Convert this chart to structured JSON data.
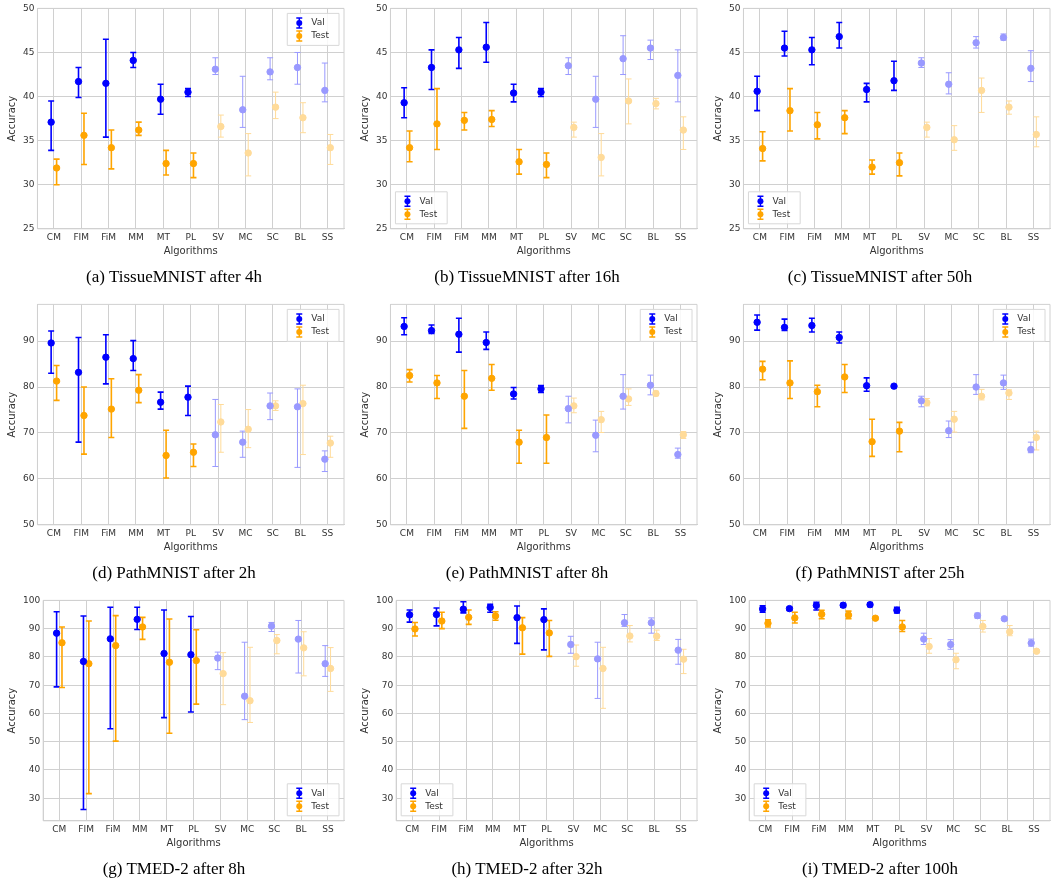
{
  "chart_data": [
    {
      "type": "scatter",
      "title": "(a) TissueMNIST after 4h",
      "xlabel": "Algorithms",
      "ylabel": "Accuracy",
      "categories": [
        "CM",
        "FIM",
        "FiM",
        "MM",
        "MT",
        "PL",
        "SV",
        "MC",
        "SC",
        "BL",
        "SS"
      ],
      "ylim": [
        25,
        50
      ],
      "yticks": [
        25,
        30,
        35,
        40,
        45,
        50
      ],
      "grid": true,
      "legend": "top right",
      "marker": "circle",
      "series": [
        {
          "name": "Val",
          "color": "#0000ff",
          "colors": [
            "#0000ff",
            "#0000ff",
            "#0000ff",
            "#0000ff",
            "#0000ff",
            "#0000ff",
            "#9999ff",
            "#9999ff",
            "#9999ff",
            "#9999ff",
            "#9999ff"
          ],
          "values": [
            37.1,
            41.7,
            41.5,
            44.1,
            39.7,
            40.5,
            43.1,
            38.5,
            42.8,
            43.3,
            40.7
          ],
          "errors": [
            [
              33.9,
              39.5
            ],
            [
              39.9,
              43.3
            ],
            [
              35.4,
              46.5
            ],
            [
              43.3,
              45.0
            ],
            [
              38.0,
              41.4
            ],
            [
              40.0,
              40.9
            ],
            [
              42.5,
              44.4
            ],
            [
              36.5,
              42.3
            ],
            [
              41.9,
              44.4
            ],
            [
              41.4,
              45.0
            ],
            [
              39.4,
              43.8
            ]
          ]
        },
        {
          "name": "Test",
          "color": "#ffa500",
          "colors": [
            "#ffa500",
            "#ffa500",
            "#ffa500",
            "#ffa500",
            "#ffa500",
            "#ffa500",
            "#ffdb99",
            "#ffdb99",
            "#ffdb99",
            "#ffdb99",
            "#ffdb99"
          ],
          "values": [
            31.9,
            35.6,
            34.2,
            36.2,
            32.4,
            32.4,
            36.6,
            33.6,
            38.8,
            37.6,
            34.2
          ],
          "errors": [
            [
              30.0,
              32.9
            ],
            [
              32.3,
              38.1
            ],
            [
              31.8,
              36.2
            ],
            [
              35.6,
              37.1
            ],
            [
              31.1,
              33.9
            ],
            [
              30.8,
              33.6
            ],
            [
              35.4,
              37.9
            ],
            [
              31.0,
              35.8
            ],
            [
              37.5,
              40.5
            ],
            [
              35.9,
              39.3
            ],
            [
              32.3,
              35.7
            ]
          ]
        }
      ]
    },
    {
      "type": "scatter",
      "title": "(b) TissueMNIST after 16h",
      "xlabel": "Algorithms",
      "ylabel": "Accuracy",
      "categories": [
        "CM",
        "FIM",
        "FiM",
        "MM",
        "MT",
        "PL",
        "SV",
        "MC",
        "SC",
        "BL",
        "SS"
      ],
      "ylim": [
        25,
        50
      ],
      "yticks": [
        25,
        30,
        35,
        40,
        45,
        50
      ],
      "grid": true,
      "legend": "bottom left",
      "marker": "circle",
      "series": [
        {
          "name": "Val",
          "color": "#0000ff",
          "colors": [
            "#0000ff",
            "#0000ff",
            "#0000ff",
            "#0000ff",
            "#0000ff",
            "#0000ff",
            "#9999ff",
            "#9999ff",
            "#9999ff",
            "#9999ff",
            "#9999ff"
          ],
          "values": [
            39.3,
            43.3,
            45.3,
            45.6,
            40.4,
            40.5,
            43.5,
            39.7,
            44.3,
            45.5,
            42.4
          ],
          "errors": [
            [
              37.6,
              41.0
            ],
            [
              40.8,
              45.3
            ],
            [
              43.2,
              46.7
            ],
            [
              43.9,
              48.4
            ],
            [
              39.4,
              41.4
            ],
            [
              40.0,
              40.9
            ],
            [
              42.5,
              44.4
            ],
            [
              36.5,
              42.3
            ],
            [
              42.5,
              46.9
            ],
            [
              44.2,
              46.4
            ],
            [
              39.4,
              45.3
            ]
          ]
        },
        {
          "name": "Test",
          "color": "#ffa500",
          "colors": [
            "#ffa500",
            "#ffa500",
            "#ffa500",
            "#ffa500",
            "#ffa500",
            "#ffa500",
            "#ffdb99",
            "#ffdb99",
            "#ffdb99",
            "#ffdb99",
            "#ffdb99"
          ],
          "values": [
            34.2,
            36.9,
            37.3,
            37.4,
            32.6,
            32.3,
            36.5,
            33.1,
            39.5,
            39.2,
            36.2
          ],
          "errors": [
            [
              32.6,
              36.1
            ],
            [
              34.0,
              40.9
            ],
            [
              36.2,
              38.2
            ],
            [
              36.6,
              38.4
            ],
            [
              31.2,
              34.0
            ],
            [
              30.8,
              33.6
            ],
            [
              35.4,
              37.1
            ],
            [
              31.0,
              35.8
            ],
            [
              36.9,
              42.0
            ],
            [
              38.6,
              39.8
            ],
            [
              34.0,
              37.7
            ]
          ]
        }
      ]
    },
    {
      "type": "scatter",
      "title": "(c) TissueMNIST after 50h",
      "xlabel": "Algorithms",
      "ylabel": "Accuracy",
      "categories": [
        "CM",
        "FIM",
        "FiM",
        "MM",
        "MT",
        "PL",
        "SV",
        "MC",
        "SC",
        "BL",
        "SS"
      ],
      "ylim": [
        25,
        50
      ],
      "yticks": [
        25,
        30,
        35,
        40,
        45,
        50
      ],
      "grid": true,
      "legend": "bottom left",
      "marker": "circle",
      "series": [
        {
          "name": "Val",
          "color": "#0000ff",
          "colors": [
            "#0000ff",
            "#0000ff",
            "#0000ff",
            "#0000ff",
            "#0000ff",
            "#0000ff",
            "#9999ff",
            "#9999ff",
            "#9999ff",
            "#9999ff",
            "#9999ff"
          ],
          "values": [
            40.6,
            45.5,
            45.3,
            46.8,
            40.8,
            41.8,
            43.8,
            41.4,
            46.1,
            46.7,
            43.2
          ],
          "errors": [
            [
              38.4,
              42.3
            ],
            [
              44.6,
              47.4
            ],
            [
              43.6,
              46.7
            ],
            [
              45.5,
              48.4
            ],
            [
              39.4,
              41.5
            ],
            [
              40.7,
              44.0
            ],
            [
              43.3,
              44.4
            ],
            [
              40.3,
              42.7
            ],
            [
              45.5,
              46.8
            ],
            [
              46.4,
              47.1
            ],
            [
              41.7,
              45.2
            ]
          ]
        },
        {
          "name": "Test",
          "color": "#ffa500",
          "colors": [
            "#ffa500",
            "#ffa500",
            "#ffa500",
            "#ffa500",
            "#ffa500",
            "#ffa500",
            "#ffdb99",
            "#ffdb99",
            "#ffdb99",
            "#ffdb99",
            "#ffdb99"
          ],
          "values": [
            34.1,
            38.4,
            36.8,
            37.6,
            32.0,
            32.5,
            36.5,
            35.1,
            40.7,
            38.8,
            35.7
          ],
          "errors": [
            [
              32.7,
              36.0
            ],
            [
              36.1,
              40.9
            ],
            [
              35.2,
              38.2
            ],
            [
              35.8,
              38.4
            ],
            [
              31.2,
              32.8
            ],
            [
              31.0,
              33.6
            ],
            [
              35.4,
              37.1
            ],
            [
              33.9,
              36.7
            ],
            [
              38.2,
              42.1
            ],
            [
              38.0,
              39.5
            ],
            [
              34.3,
              37.7
            ]
          ]
        }
      ]
    },
    {
      "type": "scatter",
      "title": "(d) PathMNIST after 2h",
      "xlabel": "Algorithms",
      "ylabel": "Accuracy",
      "categories": [
        "CM",
        "FIM",
        "FiM",
        "MM",
        "MT",
        "PL",
        "SV",
        "MC",
        "SC",
        "BL",
        "SS"
      ],
      "ylim": [
        50,
        98
      ],
      "yticks": [
        50,
        60,
        70,
        80,
        90
      ],
      "grid": true,
      "legend": "top right",
      "marker": "circle",
      "series": [
        {
          "name": "Val",
          "color": "#0000ff",
          "colors": [
            "#0000ff",
            "#0000ff",
            "#0000ff",
            "#0000ff",
            "#0000ff",
            "#0000ff",
            "#9999ff",
            "#9999ff",
            "#9999ff",
            "#9999ff",
            "#9999ff"
          ],
          "values": [
            89.6,
            83.2,
            86.5,
            86.2,
            76.7,
            77.8,
            69.6,
            68.0,
            75.9,
            75.7,
            64.3
          ],
          "errors": [
            [
              83.0,
              92.2
            ],
            [
              68.0,
              90.8
            ],
            [
              80.7,
              91.4
            ],
            [
              83.6,
              90.1
            ],
            [
              75.2,
              78.9
            ],
            [
              73.8,
              80.2
            ],
            [
              62.7,
              77.3
            ],
            [
              64.7,
              70.4
            ],
            [
              72.9,
              78.7
            ],
            [
              62.5,
              79.6
            ],
            [
              61.6,
              66.1
            ]
          ]
        },
        {
          "name": "Test",
          "color": "#ffa500",
          "colors": [
            "#ffa500",
            "#ffa500",
            "#ffa500",
            "#ffa500",
            "#ffa500",
            "#ffa500",
            "#ffdb99",
            "#ffdb99",
            "#ffdb99",
            "#ffdb99",
            "#ffdb99"
          ],
          "values": [
            81.3,
            73.8,
            75.2,
            79.3,
            65.1,
            65.8,
            72.4,
            70.8,
            75.9,
            76.4,
            67.8
          ],
          "errors": [
            [
              77.1,
              84.7
            ],
            [
              65.4,
              80.0
            ],
            [
              69.0,
              81.8
            ],
            [
              76.6,
              82.7
            ],
            [
              60.2,
              70.6
            ],
            [
              62.7,
              67.6
            ],
            [
              65.8,
              76.2
            ],
            [
              66.8,
              75.1
            ],
            [
              74.9,
              77.0
            ],
            [
              65.3,
              80.4
            ],
            [
              64.7,
              69.3
            ]
          ]
        }
      ]
    },
    {
      "type": "scatter",
      "title": "(e) PathMNIST after 8h",
      "xlabel": "Algorithms",
      "ylabel": "Accuracy",
      "categories": [
        "CM",
        "FIM",
        "FiM",
        "MM",
        "MT",
        "PL",
        "SV",
        "MC",
        "SC",
        "BL",
        "SS"
      ],
      "ylim": [
        50,
        98
      ],
      "yticks": [
        50,
        60,
        70,
        80,
        90
      ],
      "grid": true,
      "legend": "top right",
      "marker": "circle",
      "series": [
        {
          "name": "Val",
          "color": "#0000ff",
          "colors": [
            "#0000ff",
            "#0000ff",
            "#0000ff",
            "#0000ff",
            "#0000ff",
            "#0000ff",
            "#9999ff",
            "#9999ff",
            "#9999ff",
            "#9999ff",
            "#9999ff"
          ],
          "values": [
            93.2,
            92.3,
            91.5,
            89.7,
            78.5,
            79.6,
            75.3,
            69.5,
            78.0,
            80.4,
            65.3
          ],
          "errors": [
            [
              91.4,
              95.1
            ],
            [
              91.7,
              93.5
            ],
            [
              87.6,
              95.0
            ],
            [
              88.2,
              92.0
            ],
            [
              77.4,
              79.9
            ],
            [
              78.8,
              80.3
            ],
            [
              72.2,
              78.0
            ],
            [
              65.9,
              72.8
            ],
            [
              75.2,
              82.7
            ],
            [
              78.3,
              82.6
            ],
            [
              64.5,
              66.7
            ]
          ]
        },
        {
          "name": "Test",
          "color": "#ffa500",
          "colors": [
            "#ffa500",
            "#ffa500",
            "#ffa500",
            "#ffa500",
            "#ffa500",
            "#ffa500",
            "#ffdb99",
            "#ffdb99",
            "#ffdb99",
            "#ffdb99",
            "#ffdb99"
          ],
          "values": [
            82.5,
            80.9,
            78.0,
            81.9,
            68.0,
            69.0,
            75.9,
            72.9,
            77.4,
            78.6,
            69.6
          ],
          "errors": [
            [
              81.1,
              83.8
            ],
            [
              77.5,
              82.5
            ],
            [
              71.0,
              83.6
            ],
            [
              79.3,
              84.9
            ],
            [
              63.4,
              70.6
            ],
            [
              63.4,
              73.9
            ],
            [
              74.4,
              77.6
            ],
            [
              70.1,
              74.7
            ],
            [
              76.0,
              79.6
            ],
            [
              78.1,
              79.1
            ],
            [
              68.8,
              70.3
            ]
          ]
        }
      ]
    },
    {
      "type": "scatter",
      "title": "(f) PathMNIST after 25h",
      "xlabel": "Algorithms",
      "ylabel": "Accuracy",
      "categories": [
        "CM",
        "FIM",
        "FiM",
        "MM",
        "MT",
        "PL",
        "SV",
        "MC",
        "SC",
        "BL",
        "SS"
      ],
      "ylim": [
        50,
        98
      ],
      "yticks": [
        50,
        60,
        70,
        80,
        90
      ],
      "grid": true,
      "legend": "top right",
      "marker": "circle",
      "series": [
        {
          "name": "Val",
          "color": "#0000ff",
          "colors": [
            "#0000ff",
            "#0000ff",
            "#0000ff",
            "#0000ff",
            "#0000ff",
            "#0000ff",
            "#9999ff",
            "#9999ff",
            "#9999ff",
            "#9999ff",
            "#9999ff"
          ],
          "values": [
            94.1,
            93.0,
            93.4,
            90.8,
            80.3,
            80.2,
            77.0,
            70.5,
            80.0,
            80.9,
            66.4
          ],
          "errors": [
            [
              92.4,
              95.7
            ],
            [
              92.3,
              94.8
            ],
            [
              92.0,
              95.0
            ],
            [
              89.6,
              92.0
            ],
            [
              79.1,
              82.0
            ],
            [
              79.9,
              80.5
            ],
            [
              75.7,
              78.0
            ],
            [
              69.0,
              72.6
            ],
            [
              78.4,
              82.7
            ],
            [
              79.5,
              82.6
            ],
            [
              65.7,
              68.0
            ]
          ]
        },
        {
          "name": "Test",
          "color": "#ffa500",
          "colors": [
            "#ffa500",
            "#ffa500",
            "#ffa500",
            "#ffa500",
            "#ffa500",
            "#ffa500",
            "#ffdb99",
            "#ffdb99",
            "#ffdb99",
            "#ffdb99",
            "#ffdb99"
          ],
          "values": [
            83.9,
            80.9,
            79.0,
            82.2,
            68.1,
            70.4,
            76.6,
            73.0,
            78.0,
            78.7,
            69.0
          ],
          "errors": [
            [
              81.6,
              85.6
            ],
            [
              77.5,
              85.7
            ],
            [
              75.7,
              80.4
            ],
            [
              78.8,
              84.9
            ],
            [
              64.9,
              73.0
            ],
            [
              65.9,
              72.3
            ],
            [
              75.9,
              77.5
            ],
            [
              70.2,
              74.7
            ],
            [
              77.2,
              79.5
            ],
            [
              77.3,
              79.4
            ],
            [
              66.3,
              70.4
            ]
          ]
        }
      ]
    },
    {
      "type": "scatter",
      "title": "(g) TMED-2 after 8h",
      "xlabel": "Algorithms",
      "ylabel": "Accuracy",
      "categories": [
        "CM",
        "FIM",
        "FiM",
        "MM",
        "MT",
        "PL",
        "SV",
        "MC",
        "SC",
        "BL",
        "SS"
      ],
      "ylim": [
        22,
        100
      ],
      "yticks": [
        30,
        40,
        50,
        60,
        70,
        80,
        90,
        100
      ],
      "grid": true,
      "legend": "bottom right",
      "marker": "circle",
      "series": [
        {
          "name": "Val",
          "color": "#0000ff",
          "colors": [
            "#0000ff",
            "#0000ff",
            "#0000ff",
            "#0000ff",
            "#0000ff",
            "#0000ff",
            "#9999ff",
            "#9999ff",
            "#9999ff",
            "#9999ff",
            "#9999ff"
          ],
          "values": [
            88.4,
            78.4,
            86.4,
            93.3,
            81.2,
            80.8,
            79.6,
            66.1,
            90.9,
            86.3,
            77.6
          ],
          "errors": [
            [
              69.4,
              96.0
            ],
            [
              26.0,
              94.5
            ],
            [
              54.6,
              97.6
            ],
            [
              89.7,
              97.6
            ],
            [
              58.5,
              96.6
            ],
            [
              60.5,
              94.3
            ],
            [
              75.5,
              81.7
            ],
            [
              57.8,
              85.2
            ],
            [
              89.0,
              92.2
            ],
            [
              74.3,
              92.9
            ],
            [
              73.1,
              84.0
            ]
          ]
        },
        {
          "name": "Test",
          "color": "#ffa500",
          "colors": [
            "#ffa500",
            "#ffa500",
            "#ffa500",
            "#ffa500",
            "#ffa500",
            "#ffa500",
            "#ffdb99",
            "#ffdb99",
            "#ffdb99",
            "#ffdb99",
            "#ffdb99"
          ],
          "values": [
            85.0,
            77.6,
            84.0,
            90.6,
            78.1,
            78.7,
            74.1,
            64.5,
            85.8,
            83.2,
            75.9
          ],
          "errors": [
            [
              69.2,
              90.6
            ],
            [
              31.6,
              92.7
            ],
            [
              50.2,
              94.6
            ],
            [
              86.2,
              94.0
            ],
            [
              53.0,
              93.4
            ],
            [
              63.3,
              89.6
            ],
            [
              63.1,
              81.5
            ],
            [
              56.8,
              83.4
            ],
            [
              81.1,
              87.9
            ],
            [
              73.3,
              88.9
            ],
            [
              67.8,
              83.3
            ]
          ]
        }
      ]
    },
    {
      "type": "scatter",
      "title": "(h) TMED-2 after 32h",
      "xlabel": "Algorithms",
      "ylabel": "Accuracy",
      "categories": [
        "CM",
        "FIM",
        "FiM",
        "MM",
        "MT",
        "PL",
        "SV",
        "MC",
        "SC",
        "BL",
        "SS"
      ],
      "ylim": [
        22,
        100
      ],
      "yticks": [
        30,
        40,
        50,
        60,
        70,
        80,
        90,
        100
      ],
      "grid": true,
      "legend": "bottom left",
      "marker": "circle",
      "series": [
        {
          "name": "Val",
          "color": "#0000ff",
          "colors": [
            "#0000ff",
            "#0000ff",
            "#0000ff",
            "#0000ff",
            "#0000ff",
            "#0000ff",
            "#9999ff",
            "#9999ff",
            "#9999ff",
            "#9999ff",
            "#9999ff"
          ],
          "values": [
            94.9,
            95.0,
            96.9,
            97.5,
            93.9,
            93.2,
            84.4,
            79.3,
            92.1,
            92.1,
            82.4
          ],
          "errors": [
            [
              92.3,
              96.6
            ],
            [
              91.0,
              97.3
            ],
            [
              95.6,
              99.5
            ],
            [
              95.8,
              98.6
            ],
            [
              84.8,
              98.0
            ],
            [
              82.5,
              97.0
            ],
            [
              81.3,
              87.3
            ],
            [
              65.3,
              85.2
            ],
            [
              90.8,
              95.0
            ],
            [
              88.4,
              93.8
            ],
            [
              77.4,
              86.2
            ]
          ]
        },
        {
          "name": "Test",
          "color": "#ffa500",
          "colors": [
            "#ffa500",
            "#ffa500",
            "#ffa500",
            "#ffa500",
            "#ffa500",
            "#ffa500",
            "#ffdb99",
            "#ffdb99",
            "#ffdb99",
            "#ffdb99",
            "#ffdb99"
          ],
          "values": [
            89.9,
            92.7,
            94.0,
            94.5,
            90.3,
            88.5,
            80.1,
            75.9,
            87.4,
            87.3,
            79.2
          ],
          "errors": [
            [
              87.4,
              92.2
            ],
            [
              90.0,
              95.8
            ],
            [
              91.5,
              96.6
            ],
            [
              93.0,
              96.0
            ],
            [
              81.0,
              93.9
            ],
            [
              80.2,
              92.9
            ],
            [
              76.7,
              84.2
            ],
            [
              61.8,
              83.4
            ],
            [
              85.3,
              91.1
            ],
            [
              85.8,
              89.5
            ],
            [
              74.1,
              82.7
            ]
          ]
        }
      ]
    },
    {
      "type": "scatter",
      "title": "(i) TMED-2 after 100h",
      "xlabel": "Algorithms",
      "ylabel": "Accuracy",
      "categories": [
        "CM",
        "FIM",
        "FiM",
        "MM",
        "MT",
        "PL",
        "SV",
        "MC",
        "SC",
        "BL",
        "SS"
      ],
      "ylim": [
        22,
        100
      ],
      "yticks": [
        30,
        40,
        50,
        60,
        70,
        80,
        90,
        100
      ],
      "grid": true,
      "legend": "bottom left",
      "marker": "circle",
      "series": [
        {
          "name": "Val",
          "color": "#0000ff",
          "colors": [
            "#0000ff",
            "#0000ff",
            "#0000ff",
            "#0000ff",
            "#0000ff",
            "#0000ff",
            "#9999ff",
            "#9999ff",
            "#9999ff",
            "#9999ff",
            "#9999ff"
          ],
          "values": [
            97.0,
            97.1,
            98.2,
            98.3,
            98.5,
            96.5,
            86.3,
            84.4,
            94.6,
            93.5,
            84.9
          ],
          "errors": [
            [
              95.8,
              98.1
            ],
            [
              96.4,
              97.6
            ],
            [
              96.6,
              99.3
            ],
            [
              97.6,
              98.9
            ],
            [
              97.9,
              99.1
            ],
            [
              95.6,
              97.6
            ],
            [
              84.4,
              88.4
            ],
            [
              82.7,
              86.1
            ],
            [
              93.7,
              95.5
            ],
            [
              92.9,
              94.1
            ],
            [
              83.8,
              86.3
            ]
          ]
        },
        {
          "name": "Test",
          "color": "#ffa500",
          "colors": [
            "#ffa500",
            "#ffa500",
            "#ffa500",
            "#ffa500",
            "#ffa500",
            "#ffa500",
            "#ffdb99",
            "#ffdb99",
            "#ffdb99",
            "#ffdb99",
            "#ffdb99"
          ],
          "values": [
            91.9,
            93.8,
            95.1,
            94.8,
            93.7,
            90.6,
            83.7,
            79.0,
            90.8,
            88.9,
            82.0
          ],
          "errors": [
            [
              90.6,
              93.1
            ],
            [
              92.0,
              95.8
            ],
            [
              93.5,
              96.5
            ],
            [
              93.5,
              96.2
            ],
            [
              93.3,
              94.0
            ],
            [
              89.0,
              92.9
            ],
            [
              81.3,
              86.5
            ],
            [
              75.8,
              81.3
            ],
            [
              88.8,
              92.9
            ],
            [
              87.5,
              91.1
            ],
            [
              81.5,
              82.6
            ]
          ]
        }
      ]
    }
  ]
}
